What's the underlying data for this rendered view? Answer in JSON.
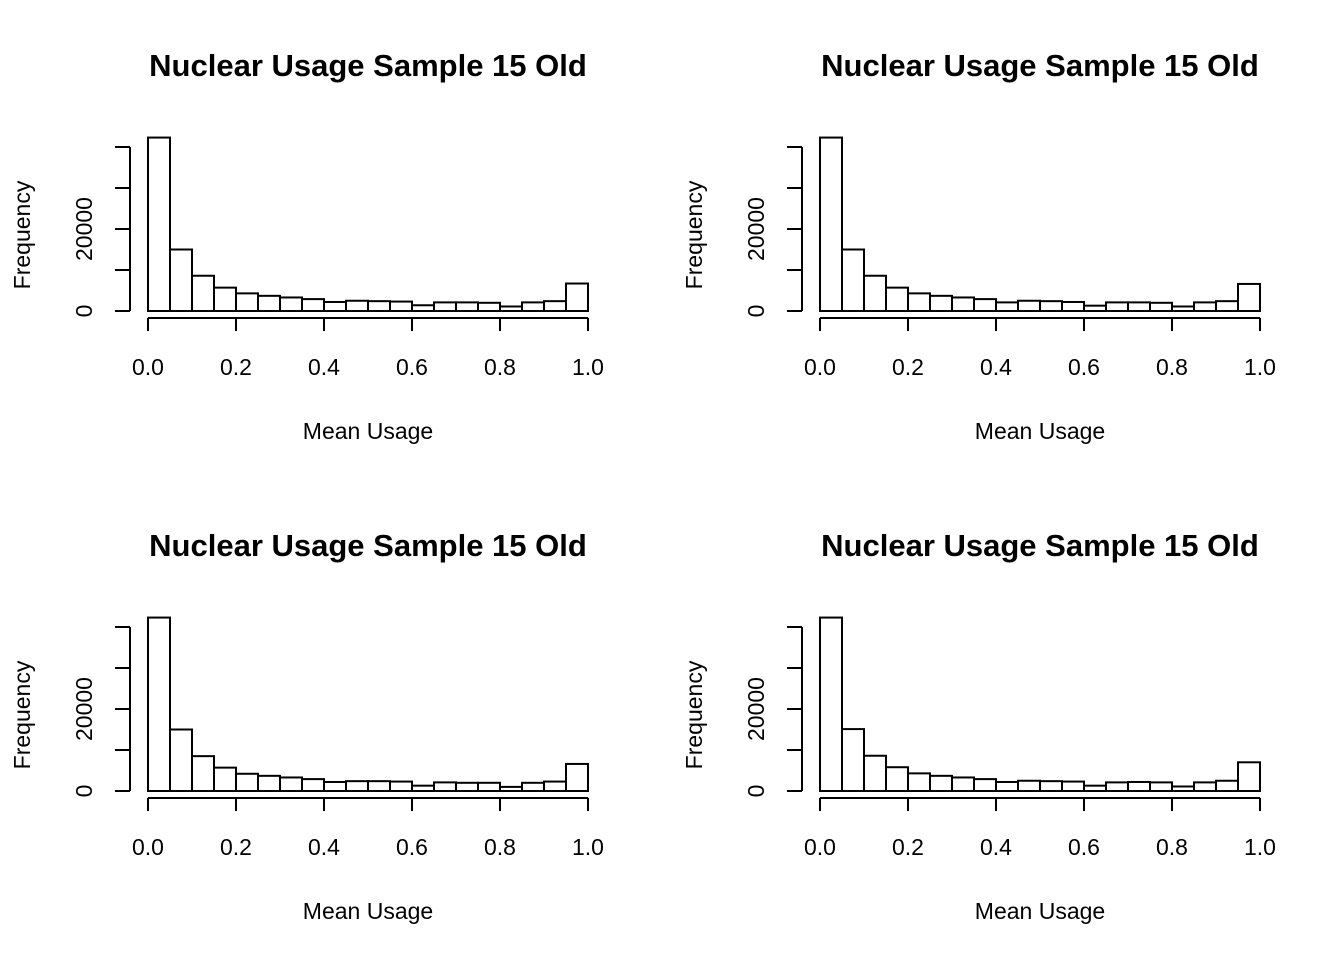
{
  "chart_data": [
    {
      "type": "bar",
      "title": "Nuclear Usage Sample 15 Old",
      "xlabel": "Mean Usage",
      "ylabel": "Frequency",
      "xlim": [
        0,
        1
      ],
      "ylim": [
        0,
        40000
      ],
      "x_ticks": [
        "0.0",
        "0.2",
        "0.4",
        "0.6",
        "0.8",
        "1.0"
      ],
      "y_ticks": [
        "0",
        "20000"
      ],
      "y_tick_values": [
        0,
        10000,
        20000,
        30000,
        40000
      ],
      "bin_edges": [
        0.0,
        0.05,
        0.1,
        0.15,
        0.2,
        0.25,
        0.3,
        0.35,
        0.4,
        0.45,
        0.5,
        0.55,
        0.6,
        0.65,
        0.7,
        0.75,
        0.8,
        0.85,
        0.9,
        0.95,
        1.0
      ],
      "values": [
        42300,
        15000,
        8600,
        5700,
        4300,
        3700,
        3300,
        2900,
        2200,
        2500,
        2400,
        2300,
        1400,
        2100,
        2100,
        2000,
        1100,
        2100,
        2400,
        6700
      ]
    },
    {
      "type": "bar",
      "title": "Nuclear Usage Sample 15 Old",
      "xlabel": "Mean Usage",
      "ylabel": "Frequency",
      "xlim": [
        0,
        1
      ],
      "ylim": [
        0,
        40000
      ],
      "x_ticks": [
        "0.0",
        "0.2",
        "0.4",
        "0.6",
        "0.8",
        "1.0"
      ],
      "y_ticks": [
        "0",
        "20000"
      ],
      "y_tick_values": [
        0,
        10000,
        20000,
        30000,
        40000
      ],
      "bin_edges": [
        0.0,
        0.05,
        0.1,
        0.15,
        0.2,
        0.25,
        0.3,
        0.35,
        0.4,
        0.45,
        0.5,
        0.55,
        0.6,
        0.65,
        0.7,
        0.75,
        0.8,
        0.85,
        0.9,
        0.95,
        1.0
      ],
      "values": [
        42300,
        15000,
        8600,
        5700,
        4300,
        3700,
        3300,
        2900,
        2100,
        2500,
        2400,
        2200,
        1300,
        2100,
        2100,
        2000,
        1100,
        2100,
        2400,
        6600
      ]
    },
    {
      "type": "bar",
      "title": "Nuclear Usage Sample 15 Old",
      "xlabel": "Mean Usage",
      "ylabel": "Frequency",
      "xlim": [
        0,
        1
      ],
      "ylim": [
        0,
        40000
      ],
      "x_ticks": [
        "0.0",
        "0.2",
        "0.4",
        "0.6",
        "0.8",
        "1.0"
      ],
      "y_ticks": [
        "0",
        "20000"
      ],
      "y_tick_values": [
        0,
        10000,
        20000,
        30000,
        40000
      ],
      "bin_edges": [
        0.0,
        0.05,
        0.1,
        0.15,
        0.2,
        0.25,
        0.3,
        0.35,
        0.4,
        0.45,
        0.5,
        0.55,
        0.6,
        0.65,
        0.7,
        0.75,
        0.8,
        0.85,
        0.9,
        0.95,
        1.0
      ],
      "values": [
        42300,
        15000,
        8500,
        5700,
        4200,
        3700,
        3300,
        2900,
        2200,
        2400,
        2400,
        2300,
        1300,
        2100,
        2000,
        2000,
        1000,
        2000,
        2300,
        6600
      ]
    },
    {
      "type": "bar",
      "title": "Nuclear Usage Sample 15 Old",
      "xlabel": "Mean Usage",
      "ylabel": "Frequency",
      "xlim": [
        0,
        1
      ],
      "ylim": [
        0,
        40000
      ],
      "x_ticks": [
        "0.0",
        "0.2",
        "0.4",
        "0.6",
        "0.8",
        "1.0"
      ],
      "y_ticks": [
        "0",
        "20000"
      ],
      "y_tick_values": [
        0,
        10000,
        20000,
        30000,
        40000
      ],
      "bin_edges": [
        0.0,
        0.05,
        0.1,
        0.15,
        0.2,
        0.25,
        0.3,
        0.35,
        0.4,
        0.45,
        0.5,
        0.55,
        0.6,
        0.65,
        0.7,
        0.75,
        0.8,
        0.85,
        0.9,
        0.95,
        1.0
      ],
      "values": [
        42300,
        15100,
        8600,
        5800,
        4300,
        3700,
        3300,
        2900,
        2200,
        2500,
        2400,
        2300,
        1300,
        2100,
        2200,
        2100,
        1100,
        2100,
        2500,
        7000
      ]
    }
  ]
}
